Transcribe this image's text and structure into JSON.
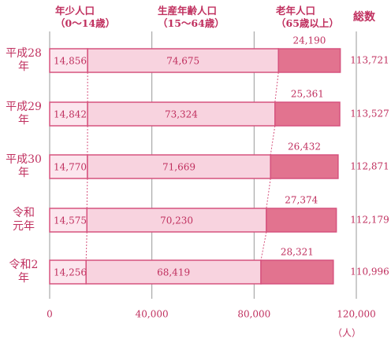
{
  "chart_data": {
    "type": "bar",
    "orientation": "horizontal",
    "stacked": true,
    "categories": [
      "平成28\n年",
      "平成29\n年",
      "平成30\n年",
      "令和\n元年",
      "令和2\n年"
    ],
    "series": [
      {
        "name": "年少人口\n（0～14歳）",
        "color": "#fce6ee",
        "values": [
          14856,
          14842,
          14770,
          14575,
          14256
        ],
        "value_labels": [
          "14,856",
          "14,842",
          "14,770",
          "14,575",
          "14,256"
        ]
      },
      {
        "name": "生産年齢人口\n（15～64歳）",
        "color": "#f8d3df",
        "values": [
          74675,
          73324,
          71669,
          70230,
          68419
        ],
        "value_labels": [
          "74,675",
          "73,324",
          "71,669",
          "70,230",
          "68,419"
        ]
      },
      {
        "name": "老年人口\n（65歳以上）",
        "color": "#e2738f",
        "values": [
          24190,
          25361,
          26432,
          27374,
          28321
        ],
        "value_labels": [
          "24,190",
          "25,361",
          "26,432",
          "27,374",
          "28,321"
        ]
      }
    ],
    "totals": {
      "name": "総数",
      "values": [
        113721,
        113527,
        112871,
        112179,
        110996
      ],
      "value_labels": [
        "113,721",
        "113,527",
        "112,871",
        "112,179",
        "110,996"
      ]
    },
    "xlim": [
      0,
      120000
    ],
    "xticks": [
      0,
      {
        "value": 40000,
        "label": "40,000"
      },
      {
        "value": 80000,
        "label": "80,000"
      },
      {
        "value": 120000,
        "label": "120,000"
      }
    ],
    "x_unit": "（人）",
    "grid": true,
    "border_color": "#d6537e"
  }
}
